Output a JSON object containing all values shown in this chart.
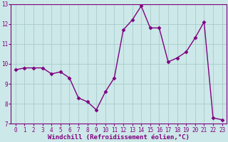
{
  "x": [
    0,
    1,
    2,
    3,
    4,
    5,
    6,
    7,
    8,
    9,
    10,
    11,
    12,
    13,
    14,
    15,
    16,
    17,
    18,
    19,
    20,
    21,
    22,
    23
  ],
  "y": [
    9.7,
    9.8,
    9.8,
    9.8,
    9.5,
    9.6,
    9.3,
    8.3,
    8.1,
    7.7,
    8.6,
    9.3,
    11.7,
    12.2,
    12.9,
    11.8,
    11.8,
    10.1,
    10.3,
    10.6,
    11.3,
    12.1,
    7.3,
    7.2
  ],
  "line_color": "#800080",
  "marker": "D",
  "marker_size": 2.5,
  "background_color": "#cce8e8",
  "grid_color": "#aacccc",
  "xlabel": "Windchill (Refroidissement éolien,°C)",
  "ylabel": "",
  "ylim": [
    7,
    13
  ],
  "xlim": [
    -0.5,
    23.5
  ],
  "yticks": [
    7,
    8,
    9,
    10,
    11,
    12,
    13
  ],
  "xticks": [
    0,
    1,
    2,
    3,
    4,
    5,
    6,
    7,
    8,
    9,
    10,
    11,
    12,
    13,
    14,
    15,
    16,
    17,
    18,
    19,
    20,
    21,
    22,
    23
  ],
  "tick_fontsize": 5.5,
  "label_fontsize": 6.5,
  "line_width": 1.0,
  "spine_color": "#800080"
}
